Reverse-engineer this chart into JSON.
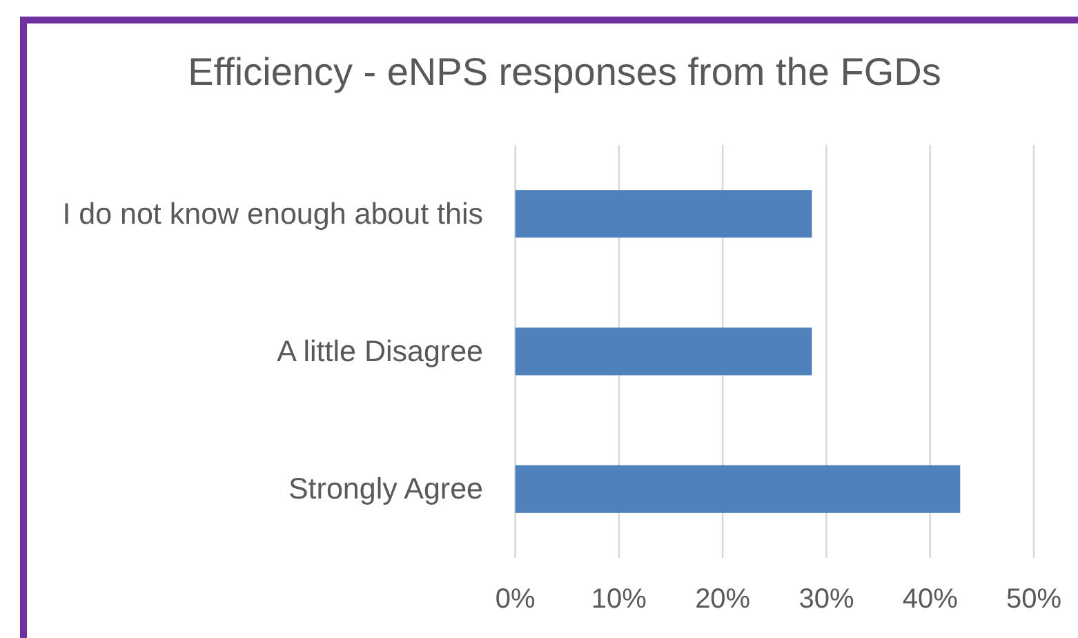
{
  "chart_data": {
    "type": "bar",
    "orientation": "horizontal",
    "title": "Efficiency - eNPS responses from the FGDs",
    "categories": [
      "I do not know enough about this",
      "A little Disagree",
      "Strongly Agree"
    ],
    "values": [
      28.6,
      28.6,
      42.9
    ],
    "color": "#4f81bd",
    "xlim": [
      0,
      50
    ],
    "xticks": [
      {
        "value": 0,
        "label": "0%"
      },
      {
        "value": 10,
        "label": "10%"
      },
      {
        "value": 20,
        "label": "20%"
      },
      {
        "value": 30,
        "label": "30%"
      },
      {
        "value": 40,
        "label": "40%"
      },
      {
        "value": 50,
        "label": "50%"
      }
    ],
    "grid": "x"
  }
}
